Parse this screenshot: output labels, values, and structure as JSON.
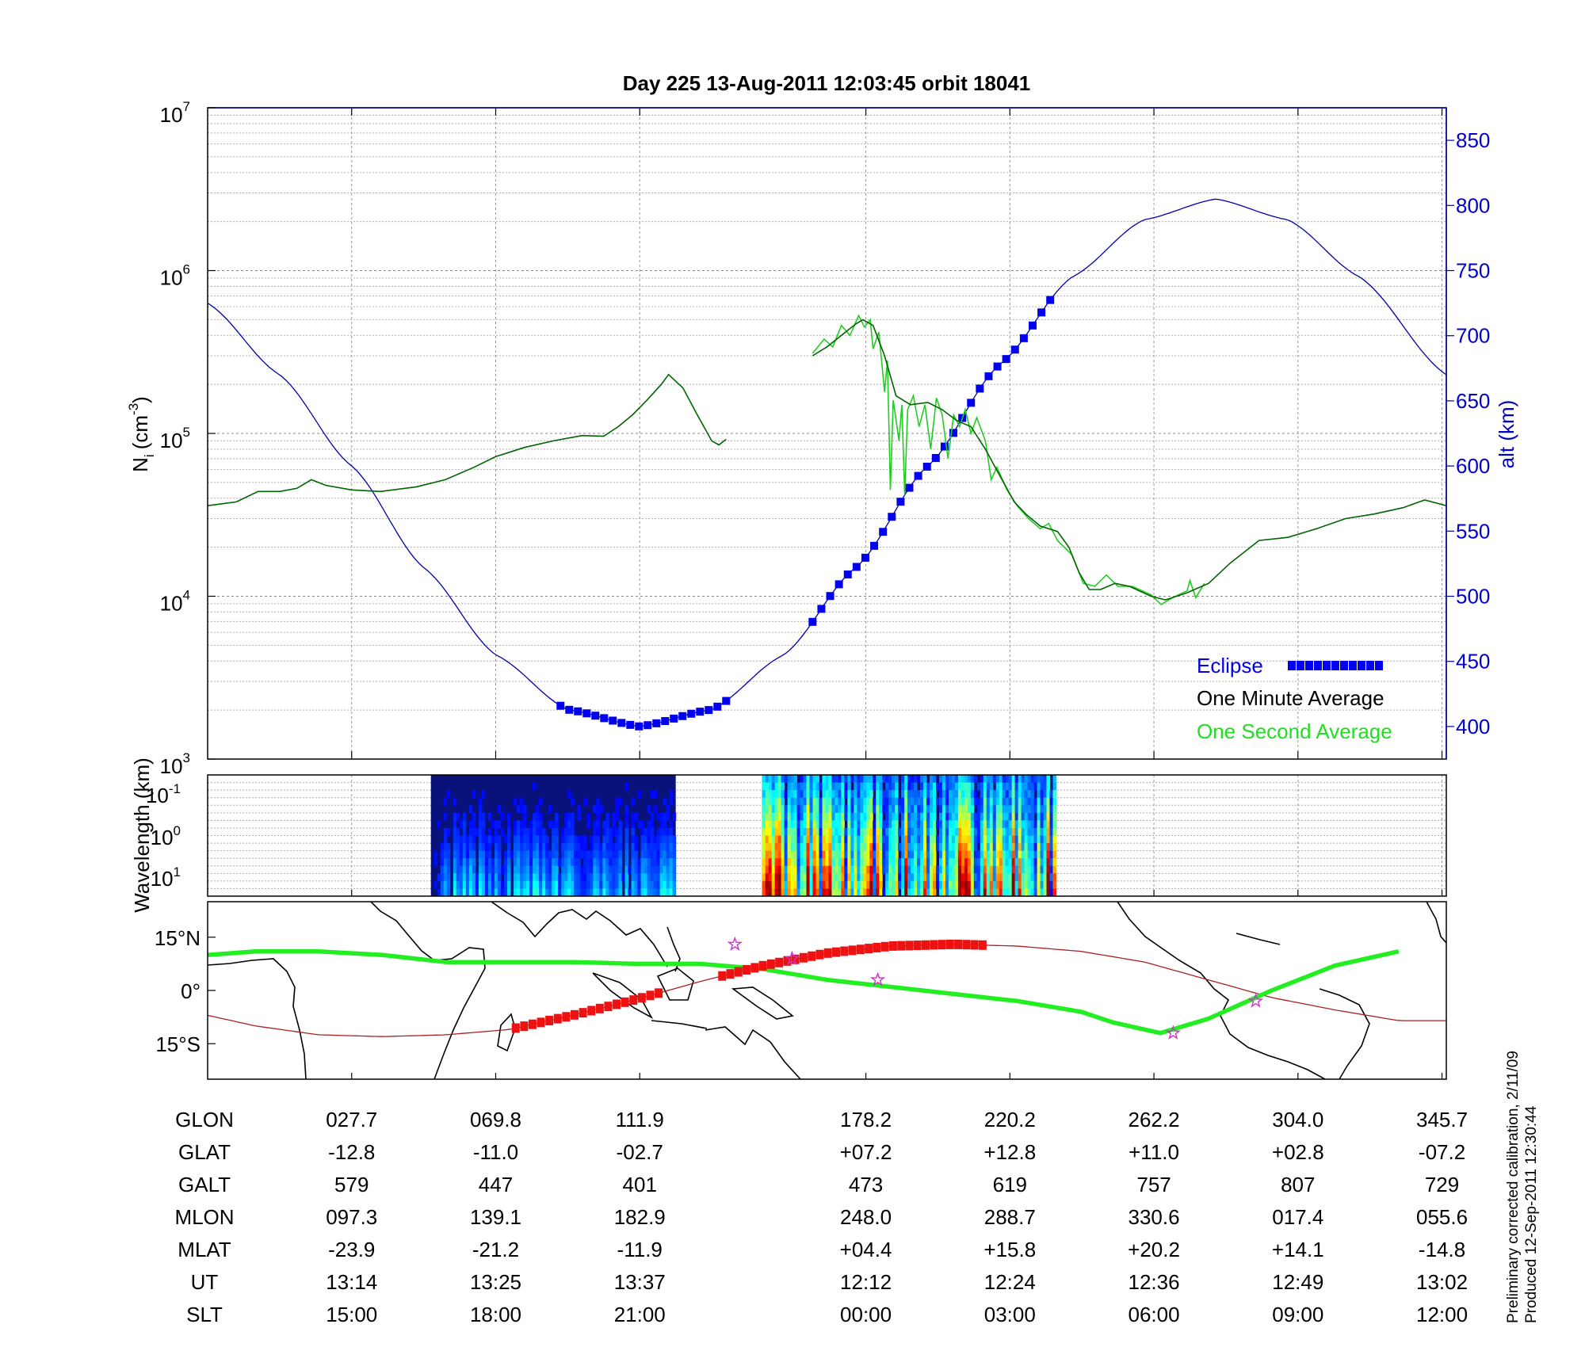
{
  "title": "Day 225  13-Aug-2011 12:03:45   orbit 18041",
  "colors": {
    "density_minute": "#006400",
    "density_second": "#22cc22",
    "altitude": "#0000aa",
    "eclipse": "#0000ee",
    "track_green": "#22ee22",
    "track_red": "#ee1111",
    "orbit_line": "#aa2222",
    "star": "#cc33cc"
  },
  "chart_data": [
    {
      "type": "line",
      "panel": "density",
      "ylabel_left_main": "N",
      "ylabel_left_sub": "i",
      "ylabel_left_unit": "(cm",
      "ylabel_left_unit_sup": "-3",
      "ylabel_left_unit_close": ")",
      "ylabel_right": "alt (km)",
      "yscale_left": "log",
      "ylim_left": [
        1000,
        10000000
      ],
      "yticks_left": [
        {
          "base": "10",
          "exp": "3",
          "value": 1000
        },
        {
          "base": "10",
          "exp": "4",
          "value": 10000
        },
        {
          "base": "10",
          "exp": "5",
          "value": 100000
        },
        {
          "base": "10",
          "exp": "6",
          "value": 1000000
        },
        {
          "base": "10",
          "exp": "7",
          "value": 10000000
        }
      ],
      "ylim_right": [
        375,
        875
      ],
      "yticks_right": [
        "400",
        "450",
        "500",
        "550",
        "600",
        "650",
        "700",
        "750",
        "800",
        "850"
      ],
      "xlim": [
        0,
        8.6
      ],
      "xtick_positions": [
        1,
        2,
        3,
        4.57,
        5.57,
        6.57,
        7.57,
        8.57
      ],
      "grid": true,
      "legend_position": "lower-right",
      "legend": [
        {
          "label": "Eclipse",
          "key": "eclipse"
        },
        {
          "label": "One Minute Average",
          "key": "minute"
        },
        {
          "label": "One Second Average",
          "key": "second"
        }
      ],
      "series": [
        {
          "name": "One Minute Average",
          "key": "minute",
          "axis": "left",
          "segments": [
            [
              [
                0,
                36000
              ],
              [
                0.2,
                38000
              ],
              [
                0.35,
                44000
              ],
              [
                0.5,
                44000
              ],
              [
                0.62,
                46000
              ],
              [
                0.72,
                52000
              ],
              [
                0.82,
                48000
              ],
              [
                1.0,
                45000
              ],
              [
                1.2,
                44000
              ],
              [
                1.45,
                47000
              ],
              [
                1.65,
                52000
              ],
              [
                1.85,
                62000
              ],
              [
                2.0,
                72000
              ],
              [
                2.2,
                82000
              ],
              [
                2.4,
                90000
              ],
              [
                2.6,
                97000
              ],
              [
                2.75,
                96000
              ],
              [
                2.85,
                110000
              ],
              [
                2.95,
                130000
              ],
              [
                3.05,
                160000
              ],
              [
                3.15,
                200000
              ],
              [
                3.2,
                230000
              ],
              [
                3.3,
                190000
              ],
              [
                3.4,
                130000
              ],
              [
                3.5,
                90000
              ],
              [
                3.55,
                85000
              ],
              [
                3.6,
                92000
              ]
            ],
            [
              [
                4.2,
                300000
              ],
              [
                4.3,
                340000
              ],
              [
                4.4,
                400000
              ],
              [
                4.5,
                470000
              ],
              [
                4.55,
                500000
              ],
              [
                4.62,
                460000
              ],
              [
                4.7,
                300000
              ],
              [
                4.78,
                170000
              ],
              [
                4.88,
                150000
              ],
              [
                5.0,
                155000
              ],
              [
                5.1,
                140000
              ],
              [
                5.2,
                120000
              ],
              [
                5.3,
                110000
              ],
              [
                5.4,
                80000
              ],
              [
                5.5,
                55000
              ],
              [
                5.6,
                38000
              ],
              [
                5.68,
                32000
              ],
              [
                5.78,
                27000
              ],
              [
                5.9,
                25000
              ],
              [
                5.98,
                20000
              ],
              [
                6.05,
                14000
              ],
              [
                6.12,
                11000
              ],
              [
                6.2,
                11000
              ],
              [
                6.3,
                12000
              ],
              [
                6.4,
                11500
              ],
              [
                6.55,
                10000
              ],
              [
                6.65,
                9500
              ],
              [
                6.8,
                10500
              ],
              [
                6.95,
                12000
              ],
              [
                7.1,
                16000
              ],
              [
                7.3,
                22000
              ],
              [
                7.5,
                23000
              ],
              [
                7.7,
                26000
              ],
              [
                7.9,
                30000
              ],
              [
                8.1,
                32000
              ],
              [
                8.3,
                35000
              ],
              [
                8.45,
                39000
              ],
              [
                8.6,
                36000
              ]
            ]
          ]
        },
        {
          "name": "One Second Average",
          "key": "second",
          "axis": "left",
          "segments": [
            [
              [
                4.2,
                310000
              ],
              [
                4.28,
                380000
              ],
              [
                4.34,
                340000
              ],
              [
                4.4,
                460000
              ],
              [
                4.46,
                400000
              ],
              [
                4.52,
                530000
              ],
              [
                4.56,
                450000
              ],
              [
                4.6,
                500000
              ],
              [
                4.62,
                330000
              ],
              [
                4.66,
                420000
              ],
              [
                4.7,
                180000
              ],
              [
                4.72,
                280000
              ],
              [
                4.74,
                45000
              ],
              [
                4.76,
                160000
              ],
              [
                4.8,
                90000
              ],
              [
                4.82,
                150000
              ],
              [
                4.84,
                42000
              ],
              [
                4.86,
                140000
              ],
              [
                4.9,
                170000
              ],
              [
                4.94,
                110000
              ],
              [
                4.98,
                150000
              ],
              [
                5.02,
                80000
              ],
              [
                5.06,
                165000
              ],
              [
                5.1,
                130000
              ],
              [
                5.14,
                70000
              ],
              [
                5.18,
                130000
              ],
              [
                5.22,
                110000
              ],
              [
                5.26,
                140000
              ],
              [
                5.3,
                100000
              ],
              [
                5.34,
                125000
              ],
              [
                5.4,
                90000
              ],
              [
                5.44,
                52000
              ],
              [
                5.48,
                62000
              ],
              [
                5.55,
                45000
              ],
              [
                5.62,
                36000
              ],
              [
                5.7,
                30000
              ],
              [
                5.78,
                26000
              ],
              [
                5.84,
                28000
              ],
              [
                5.9,
                22000
              ],
              [
                6.0,
                18000
              ],
              [
                6.08,
                12000
              ],
              [
                6.16,
                11500
              ],
              [
                6.24,
                13500
              ],
              [
                6.32,
                11500
              ],
              [
                6.42,
                11500
              ],
              [
                6.55,
                10200
              ],
              [
                6.62,
                8900
              ],
              [
                6.7,
                9800
              ],
              [
                6.8,
                10800
              ],
              [
                6.82,
                12500
              ],
              [
                6.86,
                9800
              ],
              [
                6.92,
                12000
              ]
            ]
          ]
        },
        {
          "name": "Altitude",
          "key": "alt",
          "axis": "right",
          "points": [
            [
              0,
              725
            ],
            [
              0.5,
              670
            ],
            [
              1.0,
              600
            ],
            [
              1.5,
              522
            ],
            [
              2.0,
              455
            ],
            [
              2.5,
              413
            ],
            [
              3.0,
              400
            ],
            [
              3.5,
              413
            ],
            [
              4.0,
              455
            ],
            [
              4.5,
              522
            ],
            [
              5.0,
              600
            ],
            [
              5.5,
              678
            ],
            [
              6.0,
              745
            ],
            [
              6.5,
              789
            ],
            [
              7.0,
              805
            ],
            [
              7.5,
              789
            ],
            [
              8.0,
              745
            ],
            [
              8.6,
              670
            ]
          ]
        },
        {
          "name": "Eclipse",
          "key": "eclipse",
          "axis": "right",
          "x_ranges": [
            [
              2.45,
              3.6
            ],
            [
              4.2,
              5.85
            ]
          ]
        }
      ]
    },
    {
      "type": "heatmap",
      "panel": "wavelength",
      "ylabel": "Wavelength (km)",
      "yticks": [
        {
          "base": "10",
          "exp": "-1"
        },
        {
          "base": "10",
          "exp": "0"
        },
        {
          "base": "10",
          "exp": "1"
        }
      ],
      "x_ranges": [
        [
          1.55,
          3.25
        ],
        [
          3.85,
          5.89
        ]
      ],
      "intensity": [
        "low",
        "high"
      ]
    },
    {
      "type": "line",
      "panel": "map",
      "yticks": [
        "15°N",
        "0°",
        "15°S"
      ],
      "ylim": [
        -25,
        25
      ],
      "xlim": [
        -15,
        375
      ],
      "series": [
        {
          "name": "Magnetic equator",
          "key": "green",
          "points": [
            [
              -15,
              10
            ],
            [
              0,
              11
            ],
            [
              20,
              11
            ],
            [
              40,
              10
            ],
            [
              60,
              8
            ],
            [
              80,
              8
            ],
            [
              100,
              8
            ],
            [
              120,
              7.5
            ],
            [
              140,
              7.5
            ],
            [
              160,
              6
            ],
            [
              180,
              3
            ],
            [
              200,
              1
            ],
            [
              220,
              -1
            ],
            [
              240,
              -3
            ],
            [
              260,
              -6
            ],
            [
              270,
              -9
            ],
            [
              285,
              -12
            ],
            [
              300,
              -8
            ],
            [
              320,
              0
            ],
            [
              340,
              7
            ],
            [
              360,
              11
            ]
          ]
        },
        {
          "name": "Orbit",
          "key": "orbit",
          "points": [
            [
              -15,
              -7
            ],
            [
              0,
              -10
            ],
            [
              20,
              -12.5
            ],
            [
              40,
              -13
            ],
            [
              60,
              -12.5
            ],
            [
              80,
              -11
            ],
            [
              100,
              -7
            ],
            [
              120,
              -2.5
            ],
            [
              140,
              2.5
            ],
            [
              160,
              7
            ],
            [
              180,
              10.5
            ],
            [
              200,
              12.5
            ],
            [
              220,
              13
            ],
            [
              240,
              12.5
            ],
            [
              260,
              11
            ],
            [
              280,
              8
            ],
            [
              300,
              3
            ],
            [
              320,
              -2
            ],
            [
              340,
              -5.5
            ],
            [
              360,
              -8.5
            ]
          ]
        }
      ],
      "track_ranges": [
        [
          82,
          127
        ],
        [
          147,
          229
        ]
      ],
      "stars": [
        [
          151,
          13
        ],
        [
          169,
          9
        ],
        [
          196,
          3
        ],
        [
          289,
          -12
        ],
        [
          315,
          -3
        ]
      ]
    }
  ],
  "table": {
    "rows": [
      {
        "label": "GLON",
        "values": [
          "027.7",
          "069.8",
          "111.9",
          "178.2",
          "220.2",
          "262.2",
          "304.0",
          "345.7"
        ]
      },
      {
        "label": "GLAT",
        "values": [
          "-12.8",
          "-11.0",
          "-02.7",
          "+07.2",
          "+12.8",
          "+11.0",
          "+02.8",
          "-07.2"
        ]
      },
      {
        "label": "GALT",
        "values": [
          "579",
          "447",
          "401",
          "473",
          "619",
          "757",
          "807",
          "729"
        ]
      },
      {
        "label": "MLON",
        "values": [
          "097.3",
          "139.1",
          "182.9",
          "248.0",
          "288.7",
          "330.6",
          "017.4",
          "055.6"
        ]
      },
      {
        "label": "MLAT",
        "values": [
          "-23.9",
          "-21.2",
          "-11.9",
          "+04.4",
          "+15.8",
          "+20.2",
          "+14.1",
          "-14.8"
        ]
      },
      {
        "label": "UT",
        "values": [
          "13:14",
          "13:25",
          "13:37",
          "12:12",
          "12:24",
          "12:36",
          "12:49",
          "13:02"
        ]
      },
      {
        "label": "SLT",
        "values": [
          "15:00",
          "18:00",
          "21:00",
          "00:00",
          "03:00",
          "06:00",
          "09:00",
          "12:00"
        ]
      }
    ]
  },
  "footer": {
    "line1": "Preliminary corrected calibration, 2/11/09",
    "line2": "Produced 12-Sep-2011 12:30:44"
  }
}
